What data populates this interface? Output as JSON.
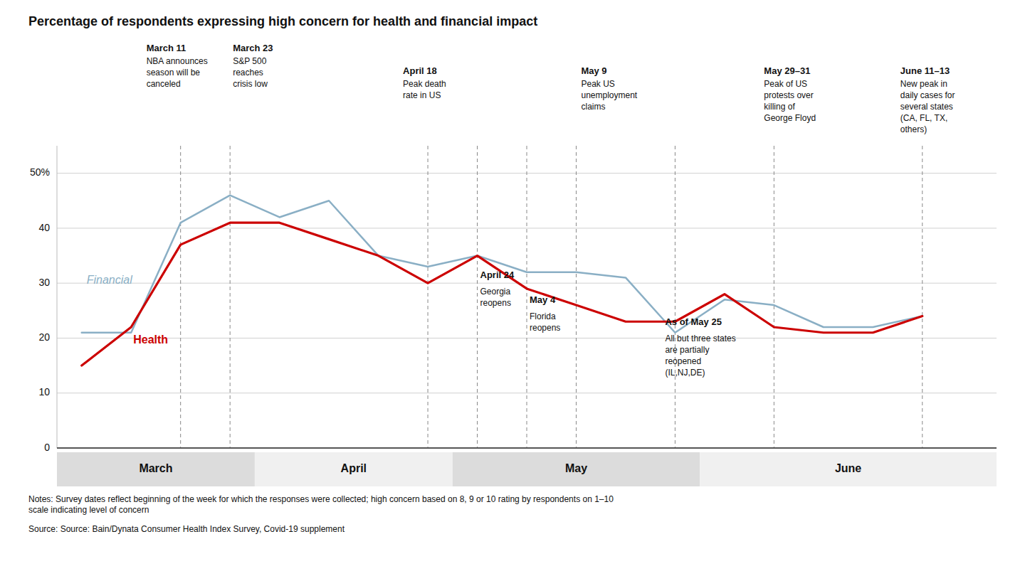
{
  "chart_data": {
    "type": "line",
    "title": "Percentage of respondents expressing high concern for health and financial impact",
    "notes": "Notes: Survey dates reflect beginning of the week for which the responses were collected; high concern based on 8, 9 or 10 rating by respondents on 1–10\nscale indicating level of concern",
    "source": "Source: Source: Bain/Dynata Consumer Health Index Survey, Covid-19 supplement",
    "x": [
      0,
      1,
      2,
      3,
      4,
      5,
      6,
      7,
      8,
      9,
      10,
      11,
      12,
      13,
      14,
      15,
      16,
      17
    ],
    "series": [
      {
        "name": "Financial",
        "color": "#8aafc5",
        "values": [
          21,
          21,
          41,
          46,
          42,
          45,
          35,
          33,
          35,
          32,
          32,
          31,
          21,
          27,
          26,
          22,
          22,
          24
        ]
      },
      {
        "name": "Health",
        "color": "#cc0000",
        "values": [
          15,
          22,
          37,
          41,
          41,
          38,
          35,
          30,
          35,
          29,
          26,
          23,
          23,
          28,
          22,
          21,
          21,
          24
        ]
      }
    ],
    "xlim": [
      -0.5,
      18.5
    ],
    "ylim": [
      0,
      55
    ],
    "yticks": [
      0,
      10,
      20,
      30,
      40,
      {
        "value": 50,
        "label": "50%"
      }
    ],
    "grid": true,
    "tick_labels": "y",
    "month_bands": [
      {
        "label": "March",
        "start": -0.5,
        "end": 3.5,
        "color": "#dcdcdc"
      },
      {
        "label": "April",
        "start": 3.5,
        "end": 7.5,
        "color": "#f0f0f0"
      },
      {
        "label": "May",
        "start": 7.5,
        "end": 12.5,
        "color": "#dcdcdc"
      },
      {
        "label": "June",
        "start": 12.5,
        "end": 18.5,
        "color": "#f0f0f0"
      }
    ],
    "events": [
      {
        "x": 2,
        "title": "March 11",
        "text": "NBA announces\nseason will be\ncanceled"
      },
      {
        "x": 3,
        "title": "March 23",
        "text": "S&P 500\nreaches\ncrisis low"
      },
      {
        "x": 7,
        "title": "April 18",
        "text": "Peak death\nrate in US"
      },
      {
        "x": 8,
        "title": "April 24",
        "text": "Georgia\nreopens"
      },
      {
        "x": 9,
        "title": "May 4",
        "text": "Florida\nreopens"
      },
      {
        "x": 10,
        "title": "May 9",
        "text": "Peak US\nunemployment\nclaims"
      },
      {
        "x": 12,
        "title": "As of May 25",
        "text": "All but three states\nare partially\nreopened\n(IL,NJ,DE)"
      },
      {
        "x": 14,
        "title": "May 29–31",
        "text": "Peak of US\nprotests over\nkilling of\nGeorge Floyd"
      },
      {
        "x": 17,
        "title": "June 11–13",
        "text": "New peak in\ndaily cases for\nseveral states\n(CA, FL, TX,\nothers)"
      }
    ]
  }
}
